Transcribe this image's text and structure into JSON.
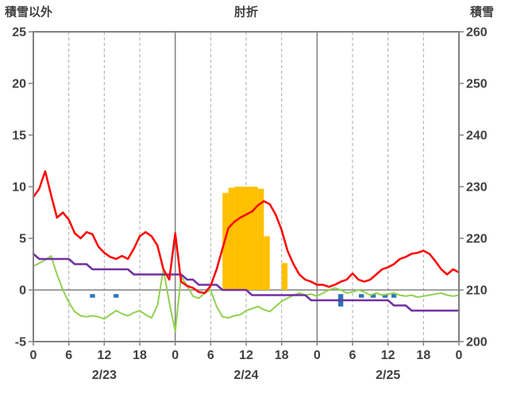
{
  "header": {
    "left_axis_title": "積雪以外",
    "title": "肘折",
    "right_axis_title": "積雪"
  },
  "chart_data": {
    "type": "line+bar",
    "title": "肘折",
    "left_axis": {
      "label": "積雪以外",
      "min": -5,
      "max": 25,
      "ticks": [
        25,
        20,
        15,
        10,
        5,
        0,
        -5
      ]
    },
    "right_axis": {
      "label": "積雪",
      "min": 200,
      "max": 260,
      "ticks": [
        260,
        250,
        240,
        230,
        220,
        210,
        200
      ]
    },
    "x_axis": {
      "total_hours": 72,
      "ticks": [
        {
          "hour": 0,
          "label": "0"
        },
        {
          "hour": 6,
          "label": "6"
        },
        {
          "hour": 12,
          "label": "12"
        },
        {
          "hour": 18,
          "label": "18"
        },
        {
          "hour": 24,
          "label": "0"
        },
        {
          "hour": 30,
          "label": "6"
        },
        {
          "hour": 36,
          "label": "12"
        },
        {
          "hour": 42,
          "label": "18"
        },
        {
          "hour": 48,
          "label": "0"
        },
        {
          "hour": 54,
          "label": "6"
        },
        {
          "hour": 60,
          "label": "12"
        },
        {
          "hour": 66,
          "label": "18"
        },
        {
          "hour": 72,
          "label": "0"
        }
      ],
      "dates": [
        {
          "label": "2/23",
          "center_hour": 12
        },
        {
          "label": "2/24",
          "center_hour": 36
        },
        {
          "label": "2/25",
          "center_hour": 60
        }
      ]
    },
    "gridlines": {
      "vertical_every_hours": 6,
      "horizontal": "zero-line-only"
    },
    "series": [
      {
        "name": "red_line",
        "type": "line",
        "axis": "left",
        "color": "#FF0000",
        "stroke_width": 2.5,
        "values": [
          9.0,
          9.8,
          11.5,
          9.2,
          7.0,
          7.5,
          6.8,
          5.5,
          5.0,
          5.6,
          5.4,
          4.2,
          3.6,
          3.2,
          3.0,
          3.3,
          3.0,
          4.0,
          5.2,
          5.6,
          5.2,
          4.3,
          2.0,
          1.0,
          5.5,
          0.8,
          0.4,
          0.2,
          -0.2,
          -0.3,
          0.4,
          2.0,
          4.0,
          6.0,
          6.6,
          7.0,
          7.3,
          7.6,
          8.2,
          8.6,
          8.3,
          7.3,
          5.8,
          3.8,
          2.5,
          1.5,
          1.0,
          0.8,
          0.5,
          0.5,
          0.3,
          0.5,
          0.8,
          1.0,
          1.6,
          1.0,
          0.8,
          1.0,
          1.5,
          2.0,
          2.2,
          2.5,
          3.0,
          3.2,
          3.5,
          3.6,
          3.8,
          3.5,
          2.8,
          2.0,
          1.5,
          2.0,
          1.7
        ]
      },
      {
        "name": "green_line",
        "type": "line",
        "axis": "left",
        "color": "#92D050",
        "stroke_width": 2,
        "values": [
          2.3,
          2.6,
          2.9,
          3.3,
          1.5,
          0.0,
          -1.2,
          -2.1,
          -2.5,
          -2.6,
          -2.5,
          -2.6,
          -2.8,
          -2.4,
          -2.0,
          -2.3,
          -2.5,
          -2.2,
          -2.0,
          -2.4,
          -2.7,
          -1.5,
          2.0,
          -1.2,
          -4.0,
          1.3,
          0.4,
          -0.6,
          -0.8,
          -0.3,
          0.0,
          -1.6,
          -2.6,
          -2.7,
          -2.5,
          -2.4,
          -2.0,
          -1.8,
          -1.6,
          -1.9,
          -2.1,
          -1.6,
          -1.1,
          -0.8,
          -0.5,
          -0.3,
          -0.5,
          -0.4,
          -0.6,
          -0.3,
          0.0,
          0.2,
          0.0,
          -0.3,
          -0.2,
          0.0,
          -0.2,
          -0.5,
          -0.3,
          -0.5,
          -0.4,
          -0.3,
          -0.5,
          -0.6,
          -0.5,
          -0.7,
          -0.6,
          -0.5,
          -0.4,
          -0.3,
          -0.5,
          -0.6,
          -0.5
        ]
      },
      {
        "name": "purple_snow_depth_line",
        "type": "line",
        "axis": "right",
        "color": "#7030A0",
        "stroke_width": 2.5,
        "values": [
          217,
          216,
          216,
          216,
          216,
          216,
          216,
          215,
          215,
          215,
          214,
          214,
          214,
          214,
          214,
          214,
          214,
          213,
          213,
          213,
          213,
          213,
          213,
          213,
          213,
          213,
          212,
          212,
          211,
          211,
          211,
          211,
          210,
          210,
          210,
          210,
          210,
          209,
          209,
          209,
          209,
          209,
          209,
          209,
          209,
          209,
          209,
          208,
          208,
          208,
          208,
          208,
          208,
          208,
          208,
          208,
          208,
          208,
          208,
          208,
          208,
          207,
          207,
          207,
          206,
          206,
          206,
          206,
          206,
          206,
          206,
          206,
          206
        ]
      },
      {
        "name": "orange_snowfall_bars",
        "type": "bar",
        "axis": "left",
        "color": "#FFC000",
        "bars": [
          {
            "x": 32,
            "v": 9.4
          },
          {
            "x": 33,
            "v": 9.9
          },
          {
            "x": 34,
            "v": 10.0
          },
          {
            "x": 35,
            "v": 10.0
          },
          {
            "x": 36,
            "v": 10.0
          },
          {
            "x": 37,
            "v": 10.0
          },
          {
            "x": 38,
            "v": 9.8
          },
          {
            "x": 39,
            "v": 5.2
          },
          {
            "x": 42,
            "v": 2.6
          }
        ]
      },
      {
        "name": "blue_markers",
        "type": "marker-bar",
        "axis": "left",
        "color": "#2E75B6",
        "bars": [
          {
            "x": 10,
            "top": -0.4,
            "bottom": -0.75
          },
          {
            "x": 14,
            "top": -0.4,
            "bottom": -0.75
          },
          {
            "x": 52,
            "top": -0.4,
            "bottom": -1.6
          },
          {
            "x": 55.5,
            "top": -0.4,
            "bottom": -0.75
          },
          {
            "x": 57.5,
            "top": -0.4,
            "bottom": -0.75
          },
          {
            "x": 59.5,
            "top": -0.4,
            "bottom": -0.75
          },
          {
            "x": 61,
            "top": -0.4,
            "bottom": -0.75
          }
        ]
      }
    ]
  },
  "colors": {
    "grid_minor": "#ABABAB",
    "grid_major": "#808080",
    "border": "#808080",
    "zero_line": "#808080",
    "text": "#404040",
    "background": "#FFFFFF"
  }
}
